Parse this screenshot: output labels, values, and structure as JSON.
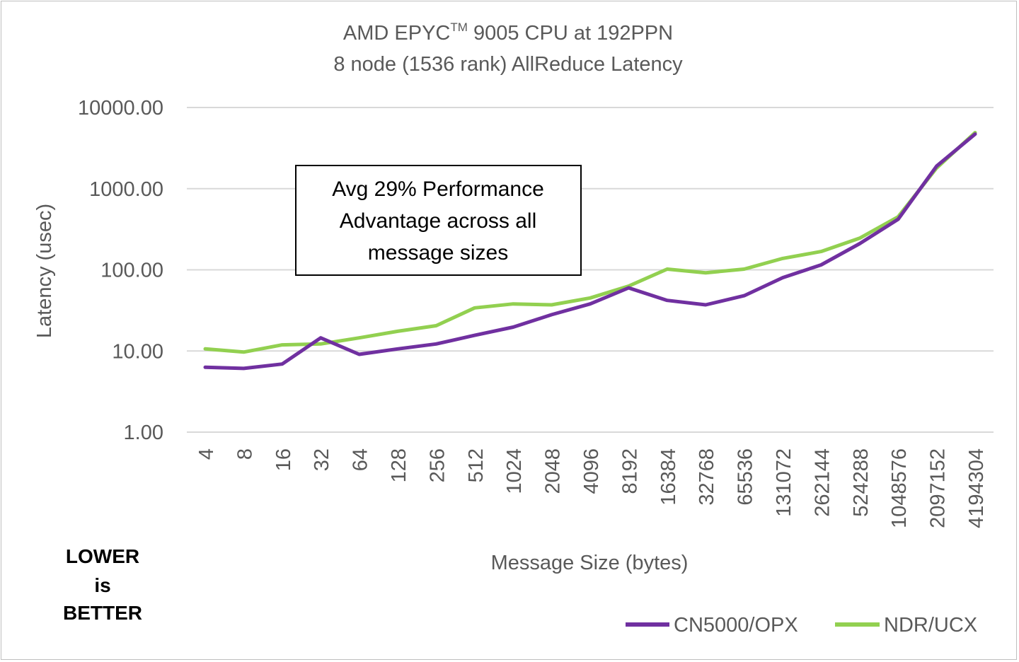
{
  "chart_data": {
    "type": "line",
    "title_main": "AMD EPYC",
    "title_superscript": "TM",
    "title_tail": " 9005 CPU at 192PPN",
    "subtitle": "8 node (1536 rank) AllReduce Latency",
    "xlabel": "Message Size (bytes)",
    "ylabel": "Latency (usec)",
    "y_scale": "log",
    "ylim": [
      1,
      10000
    ],
    "y_tick_labels": [
      "1.00",
      "10.00",
      "100.00",
      "1000.00",
      "10000.00"
    ],
    "y_tick_values": [
      1,
      10,
      100,
      1000,
      10000
    ],
    "grid": true,
    "legend_position": "bottom-right",
    "categories": [
      "4",
      "8",
      "16",
      "32",
      "64",
      "128",
      "256",
      "512",
      "1024",
      "2048",
      "4096",
      "8192",
      "16384",
      "32768",
      "65536",
      "131072",
      "262144",
      "524288",
      "1048576",
      "2097152",
      "4194304"
    ],
    "series": [
      {
        "name": "CN5000/OPX",
        "color": "#7030a0",
        "values": [
          6.3,
          6.1,
          6.9,
          14.5,
          9.1,
          10.6,
          12.2,
          15.6,
          19.7,
          28,
          38,
          60,
          42,
          37,
          48,
          80,
          115,
          210,
          420,
          1900,
          4700
        ]
      },
      {
        "name": "NDR/UCX",
        "color": "#92d050",
        "values": [
          10.6,
          9.7,
          11.9,
          12.2,
          14.5,
          17.5,
          20.5,
          34,
          38,
          37,
          45,
          63,
          102,
          92,
          102,
          138,
          168,
          245,
          450,
          1800,
          4900
        ]
      }
    ],
    "annotation": {
      "lines": [
        "Avg 29% Performance",
        "Advantage across all",
        "message sizes"
      ]
    },
    "note": {
      "lines": [
        "LOWER",
        "is",
        "BETTER"
      ]
    }
  }
}
